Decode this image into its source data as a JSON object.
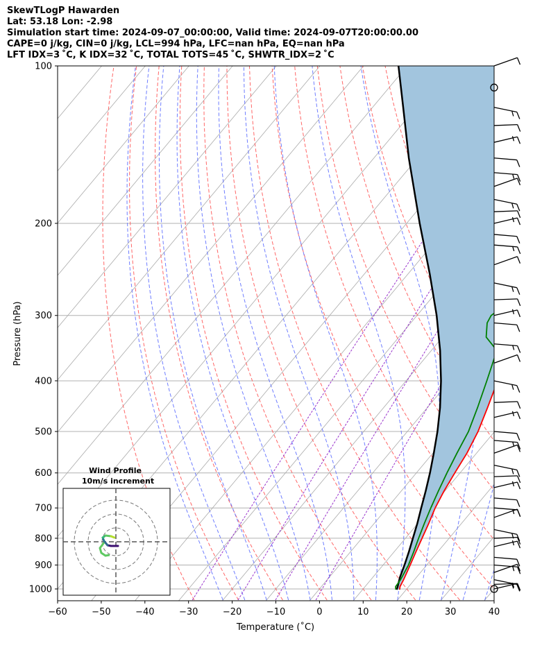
{
  "header": {
    "line1": "SkewTLogP Hawarden",
    "line2": "Lat: 53.18   Lon: -2.98",
    "line3": "Simulation start time: 2024-09-07_00:00:00, Valid time: 2024-09-07T20:00:00.00",
    "line4": "CAPE=0 j/kg, CIN=0 j/kg, LCL=994 hPa, LFC=nan hPa, EQ=nan hPa",
    "line5": "LFT IDX=3 ˚C, K IDX=32 ˚C, TOTAL TOTS=45 ˚C, SHWTR_IDX=2 ˚C"
  },
  "chart_data": {
    "type": "skew-t",
    "xlabel": "Temperature (˚C)",
    "ylabel": "Pressure (hPa)",
    "xlim": [
      -60,
      40
    ],
    "ylim": [
      1050,
      100
    ],
    "y_scale": "log",
    "x_ticks": [
      -60,
      -50,
      -40,
      -30,
      -20,
      -10,
      0,
      10,
      20,
      30,
      40
    ],
    "x_tick_labels": [
      "−60",
      "−50",
      "−40",
      "−30",
      "−20",
      "−10",
      "0",
      "10",
      "20",
      "30",
      "40"
    ],
    "y_ticks": [
      1000,
      900,
      800,
      700,
      600,
      500,
      400,
      300,
      200,
      100
    ],
    "y_tick_labels": [
      "1000",
      "900",
      "800",
      "700",
      "600",
      "500",
      "400",
      "300",
      "200",
      "100"
    ],
    "grid": true,
    "temperature_profile": {
      "color": "#ff0000",
      "points": [
        [
          1003,
          18.5
        ],
        [
          990,
          18
        ],
        [
          960,
          17.5
        ],
        [
          900,
          16.2
        ],
        [
          850,
          15
        ],
        [
          800,
          13.8
        ],
        [
          750,
          12.5
        ],
        [
          700,
          11
        ],
        [
          650,
          9.8
        ],
        [
          600,
          8.8
        ],
        [
          550,
          7.8
        ],
        [
          500,
          6.2
        ],
        [
          450,
          3.8
        ],
        [
          400,
          1
        ],
        [
          350,
          -2.5
        ],
        [
          300,
          -6.5
        ],
        [
          270,
          -10
        ],
        [
          250,
          -12.5
        ],
        [
          240,
          -13
        ],
        [
          230,
          -12.8
        ],
        [
          220,
          -11.5
        ],
        [
          205,
          -9.5
        ],
        [
          190,
          -7
        ],
        [
          175,
          -4
        ],
        [
          160,
          -1
        ],
        [
          150,
          0.5
        ],
        [
          140,
          2
        ],
        [
          130,
          3.5
        ],
        [
          120,
          5
        ],
        [
          110,
          6.5
        ],
        [
          100,
          8
        ]
      ]
    },
    "dewpoint_profile": {
      "color": "#008000",
      "points": [
        [
          1003,
          17.6
        ],
        [
          990,
          17
        ],
        [
          960,
          16.8
        ],
        [
          900,
          15.8
        ],
        [
          850,
          14.5
        ],
        [
          800,
          13
        ],
        [
          750,
          11.5
        ],
        [
          700,
          10
        ],
        [
          650,
          8.5
        ],
        [
          600,
          7
        ],
        [
          550,
          5.5
        ],
        [
          500,
          4
        ],
        [
          450,
          1.5
        ],
        [
          400,
          -1.5
        ],
        [
          350,
          -5
        ],
        [
          330,
          -10
        ],
        [
          310,
          -12.5
        ],
        [
          300,
          -13
        ],
        [
          290,
          -12
        ],
        [
          260,
          -17
        ],
        [
          250,
          -19
        ],
        [
          230,
          -19.5
        ],
        [
          210,
          -23.5
        ],
        [
          200,
          -25.5
        ],
        [
          185,
          -28
        ],
        [
          170,
          -32
        ],
        [
          160,
          -36
        ],
        [
          150,
          -38
        ],
        [
          140,
          -38
        ],
        [
          130,
          -36
        ],
        [
          120,
          -34
        ],
        [
          110,
          -31
        ],
        [
          100,
          -28
        ]
      ]
    },
    "parcel_profile": {
      "color": "#000000",
      "points": [
        [
          1003,
          17.8
        ],
        [
          994,
          17.6
        ],
        [
          950,
          16.2
        ],
        [
          900,
          14.9
        ],
        [
          850,
          13.4
        ],
        [
          800,
          11.7
        ],
        [
          750,
          9.9
        ],
        [
          700,
          7.8
        ],
        [
          650,
          5.6
        ],
        [
          600,
          3.1
        ],
        [
          550,
          0.2
        ],
        [
          500,
          -3.1
        ],
        [
          450,
          -7.1
        ],
        [
          400,
          -12
        ],
        [
          350,
          -18
        ],
        [
          300,
          -25.5
        ],
        [
          250,
          -35
        ],
        [
          200,
          -47
        ],
        [
          150,
          -62
        ],
        [
          120,
          -73
        ],
        [
          100,
          -82
        ]
      ]
    },
    "shaded_region": {
      "color": "#a2c5de",
      "between": [
        "temperature_profile",
        "parcel_profile"
      ]
    },
    "dry_adiabats_color": "#ff6666",
    "moist_adiabats_color": "#5566ff",
    "mixing_ratio_color": "#9933cc",
    "isotherm_color": "#aaaaaa",
    "wind_barbs": {
      "pressures": [
        1000,
        980,
        960,
        930,
        900,
        870,
        830,
        800,
        770,
        730,
        700,
        670,
        640,
        610,
        580,
        550,
        520,
        500,
        470,
        440,
        400,
        370,
        340,
        310,
        300,
        280,
        260,
        240,
        220,
        210,
        200,
        190,
        180,
        170,
        160,
        150,
        140,
        130,
        120,
        100
      ],
      "circles_at": [
        1000,
        110
      ]
    },
    "inset": {
      "title": "Wind Profile",
      "subtitle": "10m/s increment",
      "type": "hodograph"
    }
  }
}
